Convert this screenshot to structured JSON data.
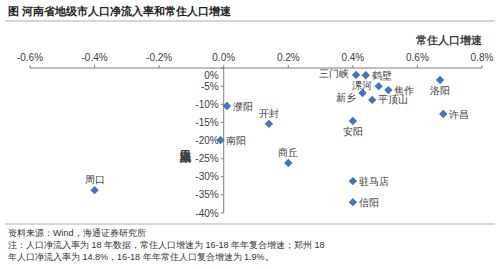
{
  "chart_data": {
    "type": "scatter",
    "title": "图 河南省地级市人口净流入率和常住人口增速",
    "x_label": "常住人口增速",
    "y_label": "人口净流入率",
    "labels": [
      "周口",
      "濮阳",
      "南阳",
      "开封",
      "商丘",
      "三门峡",
      "鹤壁",
      "漯河",
      "新乡",
      "焦作",
      "平顶山",
      "安阳",
      "驻马店",
      "信阳",
      "洛阳",
      "许昌"
    ],
    "x": [
      -0.4,
      0.01,
      -0.01,
      0.14,
      0.2,
      0.41,
      0.44,
      0.48,
      0.43,
      0.51,
      0.46,
      0.4,
      0.4,
      0.4,
      0.67,
      0.68
    ],
    "values": [
      -33.7,
      -10.5,
      -19.9,
      -15.4,
      -26.2,
      -1.9,
      -2.0,
      -5.0,
      -6.9,
      -6.1,
      -8.8,
      -14.6,
      -31.2,
      -37.0,
      -3.3,
      -12.7
    ],
    "color": "#4472c4",
    "marker": "diamond",
    "xlim": [
      -0.6,
      0.8
    ],
    "xticks": [
      {
        "value": -0.6,
        "label": "-0.6%"
      },
      {
        "value": -0.4,
        "label": "-0.4%"
      },
      {
        "value": -0.2,
        "label": "-0.2%"
      },
      {
        "value": 0,
        "label": "0.0%"
      },
      {
        "value": 0.2,
        "label": "0.2%"
      },
      {
        "value": 0.4,
        "label": "0.4%"
      },
      {
        "value": 0.6,
        "label": "0.6%"
      },
      {
        "value": 0.8,
        "label": "0.8%"
      }
    ],
    "ylim": [
      -40,
      0
    ],
    "yticks": [
      {
        "value": 0,
        "label": "0%"
      },
      {
        "value": -5,
        "label": "-5%"
      },
      {
        "value": -10,
        "label": "-10%"
      },
      {
        "value": -15,
        "label": "-15%"
      },
      {
        "value": -20,
        "label": "-20%"
      },
      {
        "value": -25,
        "label": "-25%"
      },
      {
        "value": -30,
        "label": "-30%"
      },
      {
        "value": -35,
        "label": "-35%"
      },
      {
        "value": -40,
        "label": "-40%"
      }
    ],
    "grid": false,
    "source": "资料来源：Wind，海通证券研究所",
    "notes": [
      "注：人口净流入率为 18 年数据，常住人口增速为 16-18 年年复合增速；郑州 18",
      "年人口净流入率为 14.8%，16-18 年年常住人口复合增速为 1.9%。"
    ]
  }
}
